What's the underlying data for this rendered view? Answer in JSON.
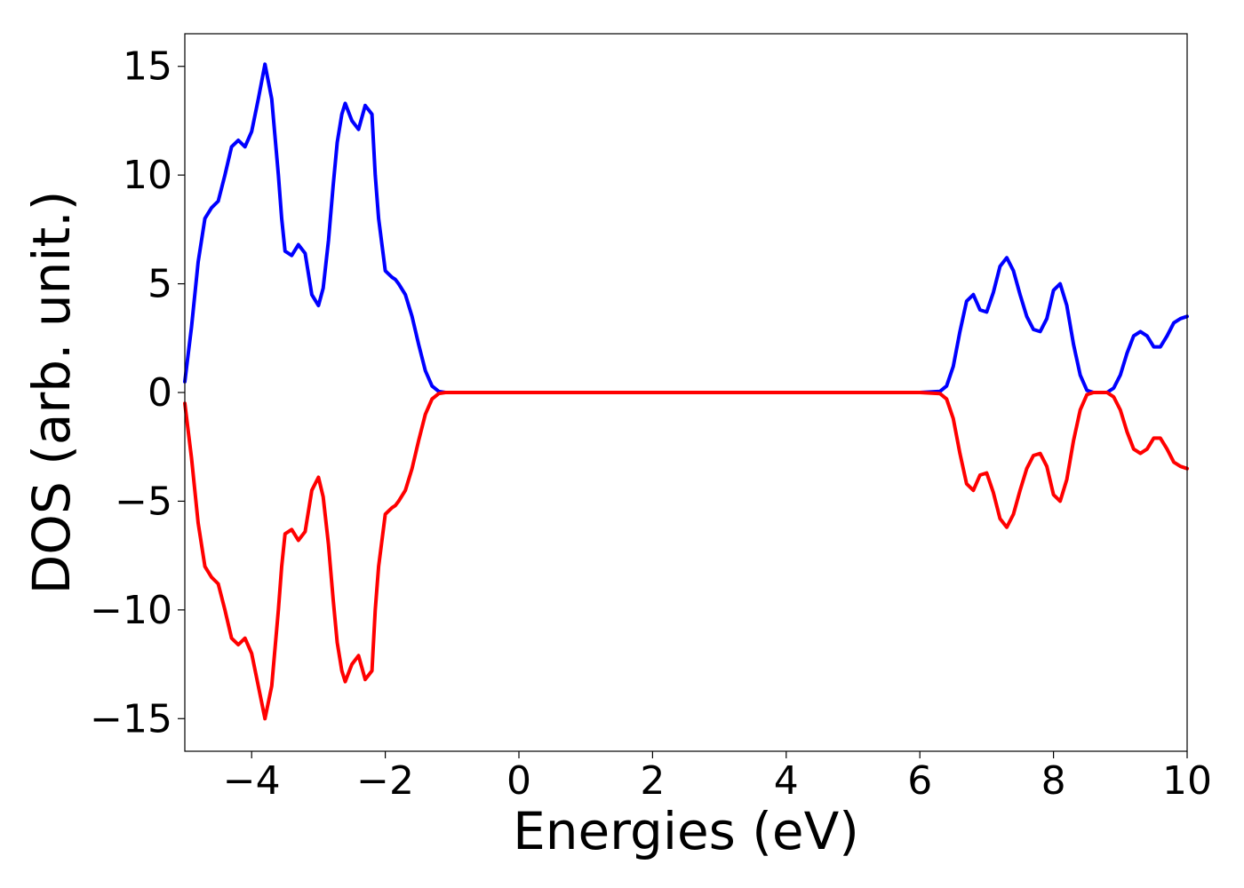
{
  "chart_data": {
    "type": "line",
    "title": "",
    "xlabel": "Energies (eV)",
    "ylabel": "DOS (arb. unit.)",
    "xlim": [
      -5,
      10
    ],
    "ylim": [
      -16.5,
      16.5
    ],
    "xticks": [
      -4,
      -2,
      0,
      2,
      4,
      6,
      8,
      10
    ],
    "xtick_labels": [
      "−4",
      "−2",
      "0",
      "2",
      "4",
      "6",
      "8",
      "10"
    ],
    "yticks": [
      -15,
      -10,
      -5,
      0,
      5,
      10,
      15
    ],
    "ytick_labels": [
      "−15",
      "−10",
      "−5",
      "0",
      "5",
      "10",
      "15"
    ],
    "grid": false,
    "legend": "none",
    "series": [
      {
        "color": "#0000ff",
        "x": [
          -5.0,
          -4.9,
          -4.8,
          -4.7,
          -4.6,
          -4.5,
          -4.4,
          -4.3,
          -4.2,
          -4.1,
          -4.0,
          -3.9,
          -3.8,
          -3.7,
          -3.6,
          -3.55,
          -3.5,
          -3.4,
          -3.3,
          -3.2,
          -3.1,
          -3.0,
          -2.93,
          -2.85,
          -2.78,
          -2.72,
          -2.65,
          -2.6,
          -2.5,
          -2.4,
          -2.3,
          -2.2,
          -2.15,
          -2.1,
          -2.0,
          -1.9,
          -1.85,
          -1.8,
          -1.7,
          -1.6,
          -1.5,
          -1.4,
          -1.3,
          -1.2,
          -1.1,
          -1.0,
          -0.9,
          -0.8,
          -0.7,
          -0.6,
          -0.5,
          0.0,
          2.0,
          4.0,
          6.0,
          6.3,
          6.4,
          6.5,
          6.6,
          6.7,
          6.8,
          6.9,
          7.0,
          7.1,
          7.2,
          7.3,
          7.4,
          7.5,
          7.6,
          7.7,
          7.8,
          7.9,
          8.0,
          8.1,
          8.2,
          8.3,
          8.4,
          8.5,
          8.6,
          8.7,
          8.8,
          8.9,
          9.0,
          9.1,
          9.2,
          9.3,
          9.4,
          9.5,
          9.6,
          9.7,
          9.8,
          9.9,
          10.0
        ],
        "y": [
          0.5,
          3.0,
          6.0,
          8.0,
          8.5,
          8.8,
          10.0,
          11.3,
          11.6,
          11.3,
          12.0,
          13.5,
          15.1,
          13.5,
          10.0,
          8.0,
          6.5,
          6.3,
          6.8,
          6.4,
          4.5,
          4.0,
          4.8,
          7.0,
          9.5,
          11.5,
          12.8,
          13.3,
          12.5,
          12.1,
          13.2,
          12.8,
          10.0,
          8.0,
          5.6,
          5.3,
          5.2,
          5.0,
          4.5,
          3.5,
          2.2,
          1.0,
          0.3,
          0.05,
          0.0,
          0.0,
          0.0,
          0.0,
          0.0,
          0.0,
          0.0,
          0.0,
          0.0,
          0.0,
          0.0,
          0.05,
          0.3,
          1.2,
          2.8,
          4.2,
          4.5,
          3.8,
          3.7,
          4.6,
          5.8,
          6.2,
          5.6,
          4.5,
          3.5,
          2.9,
          2.8,
          3.4,
          4.7,
          5.0,
          4.0,
          2.2,
          0.8,
          0.1,
          0.0,
          0.0,
          0.0,
          0.2,
          0.8,
          1.8,
          2.6,
          2.8,
          2.6,
          2.1,
          2.1,
          2.6,
          3.2,
          3.4,
          3.5
        ]
      },
      {
        "color": "#ff0000",
        "x": [
          -5.0,
          -4.9,
          -4.8,
          -4.7,
          -4.6,
          -4.5,
          -4.4,
          -4.3,
          -4.2,
          -4.1,
          -4.0,
          -3.9,
          -3.8,
          -3.7,
          -3.6,
          -3.55,
          -3.5,
          -3.4,
          -3.3,
          -3.2,
          -3.1,
          -3.0,
          -2.93,
          -2.85,
          -2.78,
          -2.72,
          -2.65,
          -2.6,
          -2.5,
          -2.4,
          -2.3,
          -2.2,
          -2.15,
          -2.1,
          -2.0,
          -1.9,
          -1.85,
          -1.8,
          -1.7,
          -1.6,
          -1.5,
          -1.4,
          -1.3,
          -1.2,
          -1.1,
          -1.0,
          -0.9,
          -0.8,
          -0.7,
          -0.6,
          -0.5,
          0.0,
          2.0,
          4.0,
          6.0,
          6.3,
          6.4,
          6.5,
          6.6,
          6.7,
          6.8,
          6.9,
          7.0,
          7.1,
          7.2,
          7.3,
          7.4,
          7.5,
          7.6,
          7.7,
          7.8,
          7.9,
          8.0,
          8.1,
          8.2,
          8.3,
          8.4,
          8.5,
          8.6,
          8.7,
          8.8,
          8.9,
          9.0,
          9.1,
          9.2,
          9.3,
          9.4,
          9.5,
          9.6,
          9.7,
          9.8,
          9.9,
          10.0
        ],
        "y": [
          -0.5,
          -3.0,
          -6.0,
          -8.0,
          -8.5,
          -8.8,
          -10.0,
          -11.3,
          -11.6,
          -11.3,
          -12.0,
          -13.5,
          -15.0,
          -13.5,
          -10.0,
          -8.0,
          -6.5,
          -6.3,
          -6.8,
          -6.4,
          -4.5,
          -3.9,
          -4.8,
          -7.0,
          -9.5,
          -11.5,
          -12.8,
          -13.3,
          -12.5,
          -12.1,
          -13.2,
          -12.8,
          -10.0,
          -8.0,
          -5.6,
          -5.3,
          -5.2,
          -5.0,
          -4.5,
          -3.5,
          -2.2,
          -1.0,
          -0.3,
          -0.05,
          0.0,
          0.0,
          0.0,
          0.0,
          0.0,
          0.0,
          0.0,
          0.0,
          0.0,
          0.0,
          0.0,
          -0.05,
          -0.3,
          -1.2,
          -2.8,
          -4.2,
          -4.5,
          -3.8,
          -3.7,
          -4.6,
          -5.8,
          -6.2,
          -5.6,
          -4.5,
          -3.5,
          -2.9,
          -2.8,
          -3.4,
          -4.7,
          -5.0,
          -4.0,
          -2.2,
          -0.8,
          -0.1,
          0.0,
          0.0,
          0.0,
          -0.2,
          -0.8,
          -1.8,
          -2.6,
          -2.8,
          -2.6,
          -2.1,
          -2.1,
          -2.6,
          -3.2,
          -3.4,
          -3.5
        ]
      }
    ]
  }
}
